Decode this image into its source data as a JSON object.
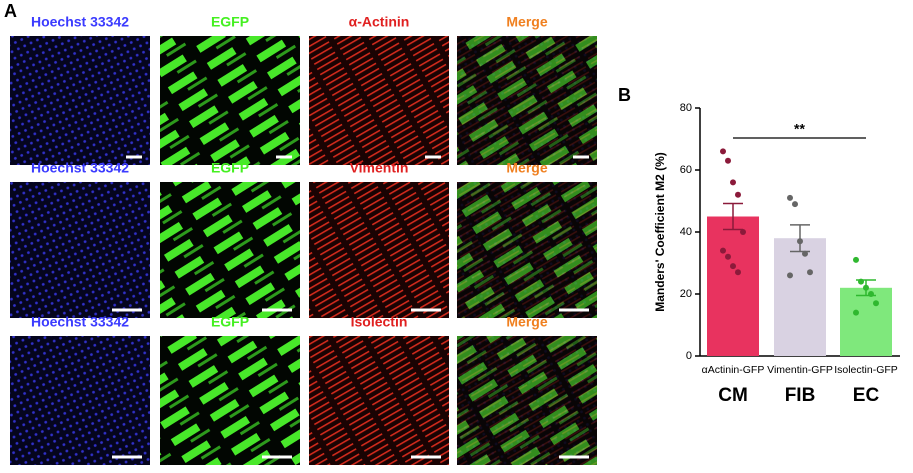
{
  "panel_a": {
    "label": "A",
    "rows": [
      [
        "Hoechst 33342",
        "EGFP",
        "α-Actinin",
        "Merge"
      ],
      [
        "Hoechst 33342",
        "EGFP",
        "Vimentin",
        "Merge"
      ],
      [
        "Hoechst 33342",
        "EGFP",
        "Isolectin",
        "Merge"
      ]
    ]
  },
  "chart_data": {
    "type": "bar",
    "panel_label": "B",
    "ylabel": "Manders' Coefficient M2 (%)",
    "categories": [
      "αActinin-GFP",
      "Vimentin-GFP",
      "Isolectin-GFP"
    ],
    "groups": [
      "CM",
      "FIB",
      "EC"
    ],
    "values": [
      45,
      38,
      22
    ],
    "errors": [
      4.2,
      4.3,
      2.5
    ],
    "colors": [
      "#e8335f",
      "#d9d2e2",
      "#7fe87c"
    ],
    "point_colors": [
      "#8b1a3a",
      "#666666",
      "#2fb82f"
    ],
    "points": [
      [
        66,
        63,
        56,
        52,
        40,
        34,
        32,
        29,
        27
      ],
      [
        51,
        49,
        37,
        33,
        27,
        26
      ],
      [
        31,
        24,
        22,
        20,
        17,
        14
      ]
    ],
    "annotation": "**",
    "ylim": [
      0,
      80
    ],
    "yticks": [
      0,
      20,
      40,
      60,
      80
    ]
  }
}
